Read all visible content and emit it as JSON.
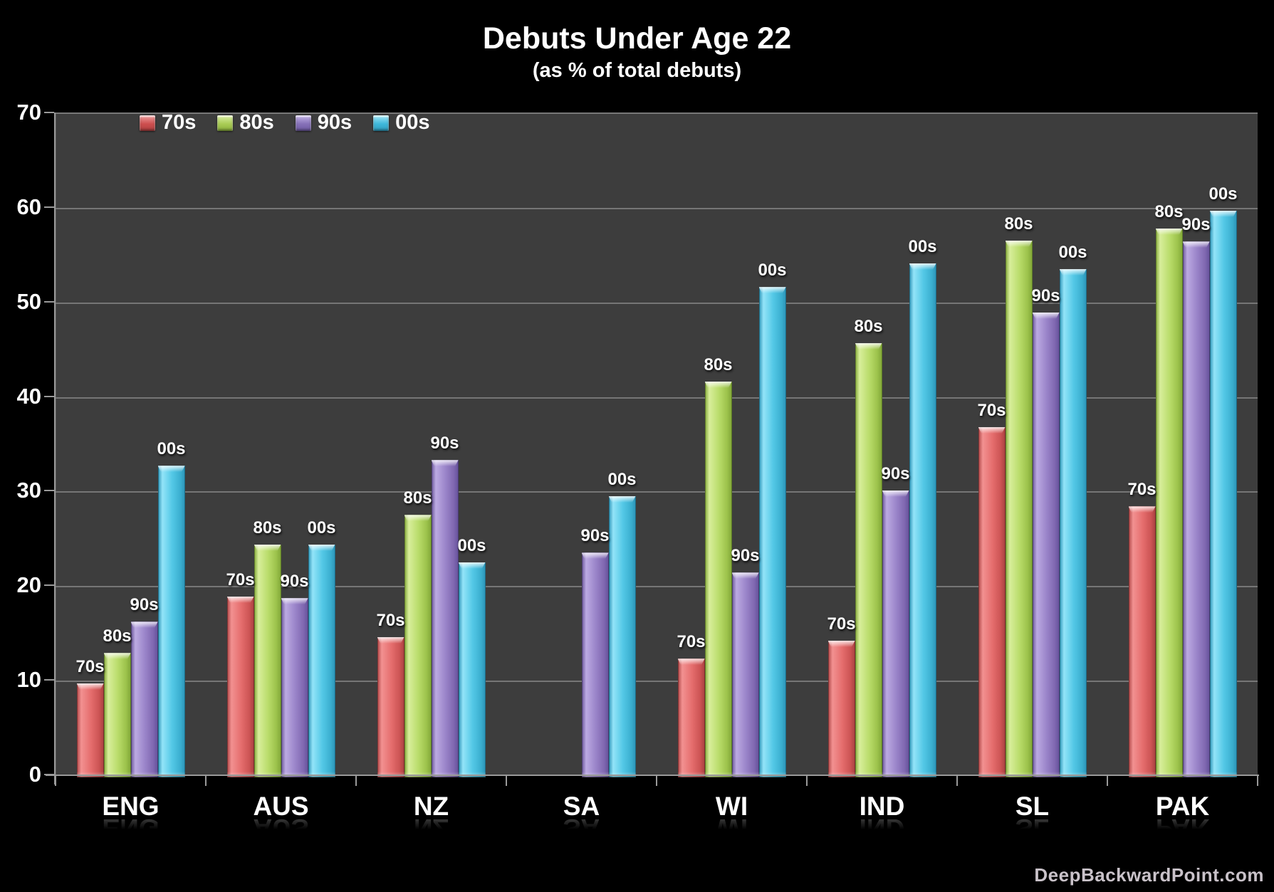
{
  "title": "Debuts Under Age 22",
  "subtitle": "(as % of total debuts)",
  "watermark": "DeepBackwardPoint.com",
  "chart_data": {
    "type": "bar",
    "title": "Debuts Under Age 22",
    "subtitle": "(as % of total debuts)",
    "categories": [
      "ENG",
      "AUS",
      "NZ",
      "SA",
      "WI",
      "IND",
      "SL",
      "PAK"
    ],
    "series": [
      {
        "name": "70s",
        "color": "#cd4f4f",
        "values": [
          9.8,
          19.0,
          14.7,
          null,
          12.4,
          14.3,
          36.9,
          28.5
        ]
      },
      {
        "name": "80s",
        "color": "#a9cc55",
        "values": [
          13.0,
          24.5,
          27.6,
          null,
          41.7,
          45.8,
          56.6,
          57.9
        ]
      },
      {
        "name": "90s",
        "color": "#8671b8",
        "values": [
          16.3,
          18.8,
          33.4,
          23.6,
          21.5,
          30.2,
          49.0,
          56.5
        ]
      },
      {
        "name": "00s",
        "color": "#3fb8da",
        "values": [
          32.8,
          24.5,
          22.6,
          29.6,
          51.7,
          54.2,
          53.6,
          59.8
        ]
      }
    ],
    "xlabel": "",
    "ylabel": "",
    "ylim": [
      0,
      70
    ],
    "yticks": [
      0,
      10,
      20,
      30,
      40,
      50,
      60,
      70
    ],
    "grid": true,
    "gridlines": "horizontal, every 10",
    "legend_position": "top-left inside plot",
    "bar_value_labels": "series name shown above each bar",
    "background": "#000000",
    "plot_background": "#3d3d3d"
  }
}
